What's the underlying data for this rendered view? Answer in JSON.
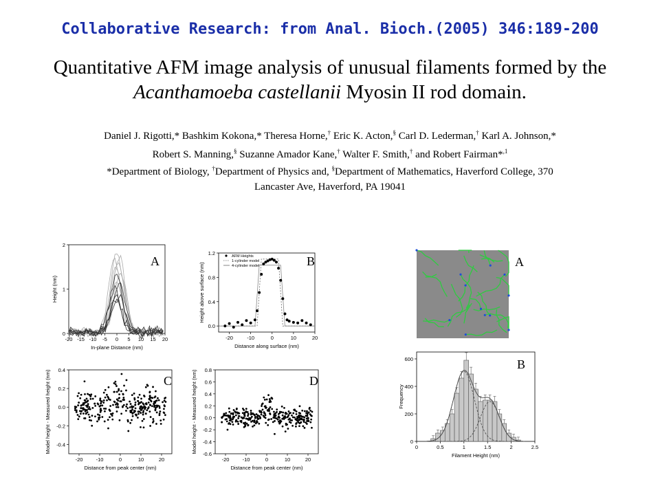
{
  "header": {
    "banner": "Collaborative Research:  from Anal. Bioch.(2005) 346:189-200",
    "title_line1": "Quantitative AFM image analysis of unusual filaments formed by the",
    "title_species": "Acanthamoeba castellanii",
    "title_line2_rest": " Myosin II rod domain."
  },
  "authors": {
    "a1": "Daniel J. Rigotti,* Bashkim Kokona,* Theresa Horne,",
    "m1": "†",
    "a2": " Eric K. Acton,",
    "m2": "§",
    "a3": " Carl D. Lederman,",
    "m3": "†",
    "a4": " Karl A. Johnson,*",
    "a5": "Robert S. Manning,",
    "m5": "§",
    "a6": " Suzanne Amador Kane,",
    "m6": "†",
    "a7": " Walter F. Smith,",
    "m7": "†",
    "a8": " and Robert Fairman*",
    "m8": ",1"
  },
  "affiliation": {
    "p1": "*Department of Biology, ",
    "m1": "†",
    "p2": "Department of Physics and, ",
    "m2": "§",
    "p3": "Department of Mathematics, Haverford College, 370",
    "line2": "Lancaster Ave, Haverford, PA  19041"
  },
  "chart_data": [
    {
      "panel": "A",
      "type": "line",
      "xlabel": "In-plane Distance (nm)",
      "ylabel": "Height (nm)",
      "xlim": [
        -20,
        20
      ],
      "ylim": [
        0,
        2
      ],
      "xticks": [
        -20,
        -15,
        -10,
        -5,
        0,
        5,
        10,
        15,
        20
      ],
      "yticks": [
        0,
        1,
        2
      ],
      "series": [
        {
          "color": "#aaaaaa",
          "amplitude": 1.8,
          "center": 0.0,
          "width": 5
        },
        {
          "color": "#aaaaaa",
          "amplitude": 1.7,
          "center": 1.0,
          "width": 5
        },
        {
          "color": "#aaaaaa",
          "amplitude": 1.6,
          "center": -1.0,
          "width": 5
        },
        {
          "color": "#aaaaaa",
          "amplitude": 1.5,
          "center": 0.5,
          "width": 5.5
        },
        {
          "color": "#aaaaaa",
          "amplitude": 1.4,
          "center": -0.5,
          "width": 5
        },
        {
          "color": "#aaaaaa",
          "amplitude": 1.3,
          "center": 1.5,
          "width": 5
        },
        {
          "color": "#aaaaaa",
          "amplitude": 1.15,
          "center": 0.0,
          "width": 5
        },
        {
          "color": "#333333",
          "amplitude": 1.3,
          "center": 0.0,
          "width": 5
        },
        {
          "color": "#333333",
          "amplitude": 1.1,
          "center": 1.0,
          "width": 5
        },
        {
          "color": "#333333",
          "amplitude": 0.95,
          "center": -1.0,
          "width": 5
        },
        {
          "color": "#333333",
          "amplitude": 0.85,
          "center": 0.5,
          "width": 5
        },
        {
          "color": "#333333",
          "amplitude": 0.75,
          "center": -0.5,
          "width": 5
        },
        {
          "color": "#333333",
          "amplitude": 0.65,
          "center": 0.0,
          "width": 5
        }
      ]
    },
    {
      "panel": "B",
      "type": "scatter",
      "xlabel": "Distance along surface (nm)",
      "ylabel": "Height above surface (nm)",
      "xlim": [
        -25,
        20
      ],
      "ylim": [
        -0.1,
        1.2
      ],
      "xticks": [
        -20,
        -10,
        0,
        10,
        20
      ],
      "yticks": [
        0.0,
        0.4,
        0.8,
        1.2
      ],
      "legend": [
        "AFM Heights",
        "1-cylinder model",
        "4-cylinder model"
      ],
      "legend_position": "top-left",
      "points_x": [
        -22,
        -20,
        -18,
        -16,
        -14,
        -12,
        -10,
        -8,
        -7,
        -6,
        -5,
        -4,
        -3,
        -2,
        -1,
        0,
        1,
        2,
        3,
        4,
        5,
        6,
        7,
        8,
        10,
        12,
        14,
        16,
        18
      ],
      "points_y": [
        0.0,
        0.04,
        -0.02,
        0.06,
        0.02,
        0.09,
        0.05,
        0.1,
        0.25,
        0.55,
        0.85,
        1.02,
        1.05,
        1.07,
        1.09,
        1.1,
        1.08,
        1.05,
        0.95,
        0.75,
        0.45,
        0.2,
        0.1,
        0.08,
        0.06,
        0.05,
        0.09,
        0.05,
        0.02
      ],
      "model_1cyl": {
        "x": [
          -25,
          -7,
          -5,
          3,
          5,
          20
        ],
        "y": [
          0.0,
          0.0,
          1.1,
          1.1,
          0.0,
          0.0
        ]
      },
      "model_4cyl": {
        "x": [
          -25,
          -8,
          -6,
          4,
          6,
          20
        ],
        "y": [
          0.0,
          0.0,
          1.0,
          1.0,
          0.0,
          0.0
        ]
      }
    },
    {
      "panel": "C",
      "type": "scatter",
      "xlabel": "Distance from peak center (nm)",
      "ylabel": "Model height - Measured height (nm)",
      "xlim": [
        -25,
        25
      ],
      "ylim": [
        -0.5,
        0.4
      ],
      "xticks": [
        -20,
        -10,
        0,
        10,
        20
      ],
      "yticks": [
        -0.4,
        -0.2,
        0.0,
        0.2,
        0.4
      ],
      "n_points": 320,
      "spread": 0.09
    },
    {
      "panel": "D",
      "type": "scatter",
      "xlabel": "Distance from peak center (nm)",
      "ylabel": "Model height - Measured height (nm)",
      "xlim": [
        -25,
        25
      ],
      "ylim": [
        -0.6,
        0.8
      ],
      "xticks": [
        -20,
        -10,
        0,
        10,
        20
      ],
      "yticks": [
        -0.6,
        -0.4,
        -0.2,
        0.0,
        0.2,
        0.4,
        0.6,
        0.8
      ],
      "n_points": 320,
      "spread": 0.08
    },
    {
      "panel": "B",
      "type": "bar",
      "xlabel": "Filament Height (nm)",
      "ylabel": "Frequency",
      "xlim": [
        0.0,
        2.5
      ],
      "ylim": [
        0,
        650
      ],
      "xticks": [
        0.0,
        0.5,
        1.0,
        1.5,
        2.0,
        2.5
      ],
      "yticks": [
        0,
        200,
        400,
        600
      ],
      "bin_width": 0.1,
      "bin_starts": [
        0.3,
        0.4,
        0.5,
        0.6,
        0.7,
        0.8,
        0.9,
        1.0,
        1.1,
        1.2,
        1.3,
        1.4,
        1.5,
        1.6,
        1.7,
        1.8,
        1.9,
        2.0,
        2.1
      ],
      "values": [
        20,
        60,
        80,
        130,
        200,
        350,
        460,
        590,
        490,
        380,
        290,
        300,
        300,
        290,
        200,
        130,
        60,
        30,
        10
      ],
      "fit_total": {
        "peaks": [
          {
            "amp": 510,
            "center": 1.0,
            "sigma": 0.22
          },
          {
            "amp": 290,
            "center": 1.55,
            "sigma": 0.2
          }
        ]
      }
    }
  ],
  "afm_image": {
    "panel": "A",
    "background": "#8a8a8a",
    "filament_color": "#2ecc40",
    "highlight_color": "#1f4fd8"
  }
}
